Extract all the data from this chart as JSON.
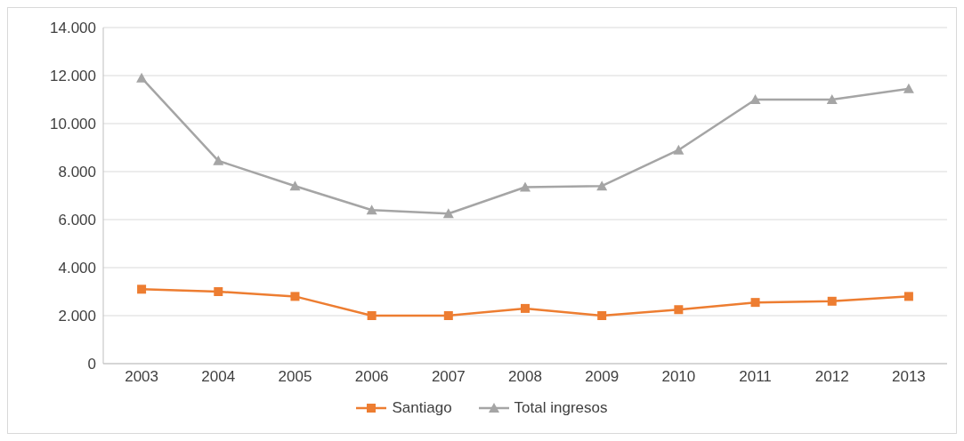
{
  "chart_data": {
    "type": "line",
    "categories": [
      "2003",
      "2004",
      "2005",
      "2006",
      "2007",
      "2008",
      "2009",
      "2010",
      "2011",
      "2012",
      "2013"
    ],
    "series": [
      {
        "name": "Santiago",
        "color": "#ed7d31",
        "marker": "square",
        "values": [
          3100,
          3000,
          2800,
          2000,
          2000,
          2300,
          2000,
          2250,
          2550,
          2600,
          2800
        ]
      },
      {
        "name": "Total ingresos",
        "color": "#a5a5a5",
        "marker": "triangle",
        "values": [
          11900,
          8450,
          7400,
          6400,
          6250,
          7350,
          7400,
          8900,
          11000,
          11000,
          11450
        ]
      }
    ],
    "ylim": [
      0,
      14000
    ],
    "yticks": [
      0,
      {
        "value": 2000,
        "label": "2.000"
      },
      {
        "value": 4000,
        "label": "4.000"
      },
      {
        "value": 6000,
        "label": "6.000"
      },
      {
        "value": 8000,
        "label": "8.000"
      },
      {
        "value": 10000,
        "label": "10.000"
      },
      {
        "value": 12000,
        "label": "12.000"
      },
      {
        "value": 14000,
        "label": "14.000"
      }
    ],
    "grid": "y",
    "legend": "bottom",
    "line_style": "solid"
  }
}
